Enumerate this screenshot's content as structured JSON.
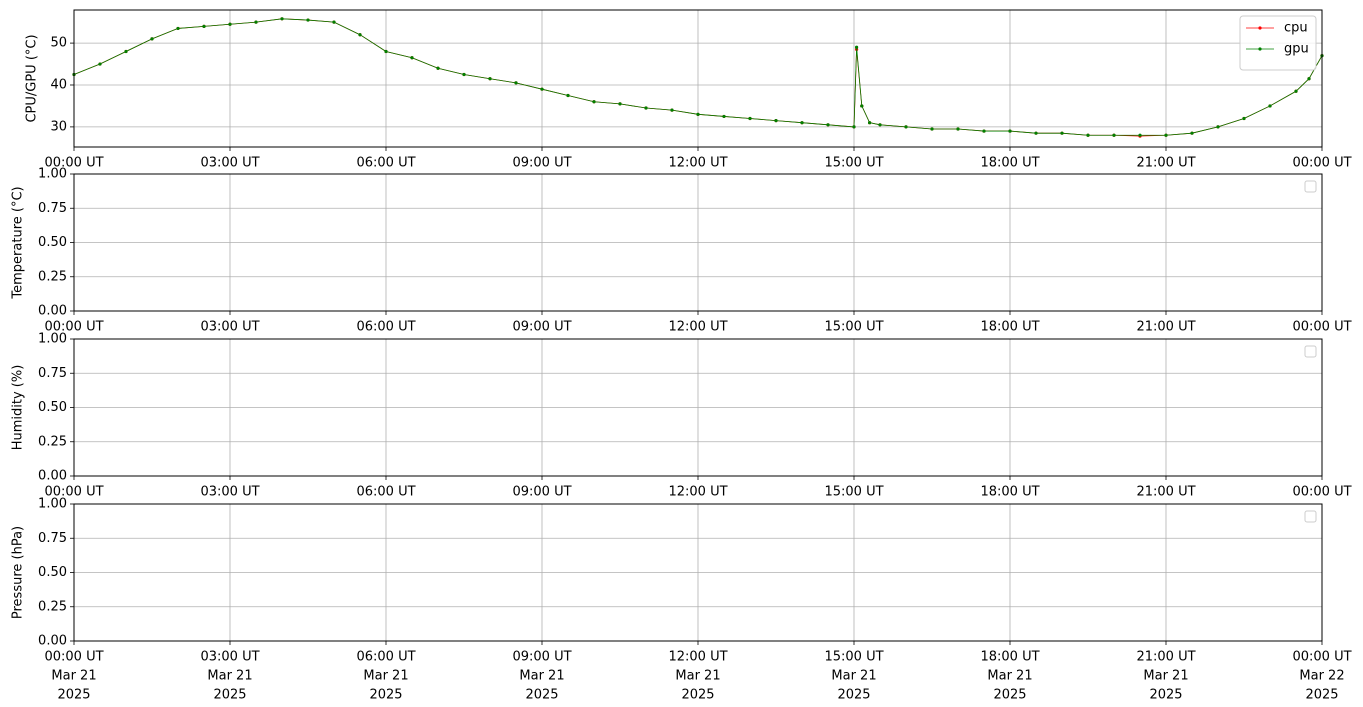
{
  "chart_data": [
    {
      "type": "line",
      "ylabel": "CPU/GPU (°C)",
      "x": [
        0,
        0.5,
        1,
        1.5,
        2,
        2.5,
        3,
        3.5,
        4,
        4.5,
        5,
        5.5,
        6,
        6.5,
        7,
        7.5,
        8,
        8.5,
        9,
        9.5,
        10,
        10.5,
        11,
        11.5,
        12,
        12.5,
        13,
        13.5,
        14,
        14.5,
        15,
        15.05,
        15.15,
        15.3,
        15.5,
        16,
        16.5,
        17,
        17.5,
        18,
        18.5,
        19,
        19.5,
        20,
        20.5,
        21,
        21.5,
        22,
        22.5,
        23,
        23.5,
        23.75,
        24
      ],
      "series": [
        {
          "name": "cpu",
          "color": "#ff0000",
          "values": [
            42.5,
            45,
            48,
            51,
            53.5,
            54,
            54.5,
            55,
            55.8,
            55.5,
            55,
            52,
            48,
            46.5,
            44,
            42.5,
            41.5,
            40.5,
            39,
            37.5,
            36,
            35.5,
            34.5,
            34,
            33,
            32.5,
            32,
            31.5,
            31,
            30.5,
            30,
            48.5,
            35,
            31,
            30.5,
            30,
            29.5,
            29.5,
            29,
            29,
            28.5,
            28.5,
            28,
            28,
            27.8,
            28,
            28.5,
            30,
            32,
            35,
            38.5,
            41.5,
            47
          ]
        },
        {
          "name": "gpu",
          "color": "#008000",
          "values": [
            42.5,
            45,
            48,
            51,
            53.5,
            54,
            54.5,
            55,
            55.8,
            55.5,
            55,
            52,
            48,
            46.5,
            44,
            42.5,
            41.5,
            40.5,
            39,
            37.5,
            36,
            35.5,
            34.5,
            34,
            33,
            32.5,
            32,
            31.5,
            31,
            30.5,
            30,
            49,
            35,
            31,
            30.5,
            30,
            29.5,
            29.5,
            29,
            29,
            28.5,
            28.5,
            28,
            28,
            28,
            28,
            28.5,
            30,
            32,
            35,
            38.5,
            41.5,
            47
          ]
        }
      ],
      "xlim": [
        0,
        24
      ],
      "xticks": [
        {
          "value": 0,
          "label": "00:00 UT"
        },
        {
          "value": 3,
          "label": "03:00 UT"
        },
        {
          "value": 6,
          "label": "06:00 UT"
        },
        {
          "value": 9,
          "label": "09:00 UT"
        },
        {
          "value": 12,
          "label": "12:00 UT"
        },
        {
          "value": 15,
          "label": "15:00 UT"
        },
        {
          "value": 18,
          "label": "18:00 UT"
        },
        {
          "value": 21,
          "label": "21:00 UT"
        },
        {
          "value": 24,
          "label": "00:00 UT"
        }
      ],
      "ylim": [
        25.2,
        57.9
      ],
      "yticks": [
        30,
        40,
        50
      ],
      "grid": true,
      "legend": "upper right"
    },
    {
      "type": "line",
      "ylabel": "Temperature (°C)",
      "xlim": [
        0,
        24
      ],
      "xticks": [
        {
          "value": 0,
          "label": "00:00 UT"
        },
        {
          "value": 3,
          "label": "03:00 UT"
        },
        {
          "value": 6,
          "label": "06:00 UT"
        },
        {
          "value": 9,
          "label": "09:00 UT"
        },
        {
          "value": 12,
          "label": "12:00 UT"
        },
        {
          "value": 15,
          "label": "15:00 UT"
        },
        {
          "value": 18,
          "label": "18:00 UT"
        },
        {
          "value": 21,
          "label": "21:00 UT"
        },
        {
          "value": 24,
          "label": "00:00 UT"
        }
      ],
      "ylim": [
        0,
        1
      ],
      "yticks": [
        {
          "value": 0,
          "label": "0.00"
        },
        0.25,
        {
          "value": 0.5,
          "label": "0.50"
        },
        0.75,
        {
          "value": 1,
          "label": "1.00"
        }
      ],
      "grid": true,
      "legend": "upper right"
    },
    {
      "type": "line",
      "ylabel": "Humidity (%)",
      "xlim": [
        0,
        24
      ],
      "xticks": [
        {
          "value": 0,
          "label": "00:00 UT"
        },
        {
          "value": 3,
          "label": "03:00 UT"
        },
        {
          "value": 6,
          "label": "06:00 UT"
        },
        {
          "value": 9,
          "label": "09:00 UT"
        },
        {
          "value": 12,
          "label": "12:00 UT"
        },
        {
          "value": 15,
          "label": "15:00 UT"
        },
        {
          "value": 18,
          "label": "18:00 UT"
        },
        {
          "value": 21,
          "label": "21:00 UT"
        },
        {
          "value": 24,
          "label": "00:00 UT"
        }
      ],
      "ylim": [
        0,
        1
      ],
      "yticks": [
        {
          "value": 0,
          "label": "0.00"
        },
        0.25,
        {
          "value": 0.5,
          "label": "0.50"
        },
        0.75,
        {
          "value": 1,
          "label": "1.00"
        }
      ],
      "grid": true,
      "legend": "upper right"
    },
    {
      "type": "line",
      "ylabel": "Pressure (hPa)",
      "xlim": [
        0,
        24
      ],
      "xticks": [
        {
          "value": 0,
          "label": [
            "00:00 UT",
            "Mar 21",
            "2025"
          ]
        },
        {
          "value": 3,
          "label": [
            "03:00 UT",
            "Mar 21",
            "2025"
          ]
        },
        {
          "value": 6,
          "label": [
            "06:00 UT",
            "Mar 21",
            "2025"
          ]
        },
        {
          "value": 9,
          "label": [
            "09:00 UT",
            "Mar 21",
            "2025"
          ]
        },
        {
          "value": 12,
          "label": [
            "12:00 UT",
            "Mar 21",
            "2025"
          ]
        },
        {
          "value": 15,
          "label": [
            "15:00 UT",
            "Mar 21",
            "2025"
          ]
        },
        {
          "value": 18,
          "label": [
            "18:00 UT",
            "Mar 21",
            "2025"
          ]
        },
        {
          "value": 21,
          "label": [
            "21:00 UT",
            "Mar 21",
            "2025"
          ]
        },
        {
          "value": 24,
          "label": [
            "00:00 UT",
            "Mar 22",
            "2025"
          ]
        }
      ],
      "ylim": [
        0,
        1
      ],
      "yticks": [
        {
          "value": 0,
          "label": "0.00"
        },
        0.25,
        {
          "value": 0.5,
          "label": "0.50"
        },
        0.75,
        {
          "value": 1,
          "label": "1.00"
        }
      ],
      "grid": true,
      "legend": "upper right"
    }
  ]
}
